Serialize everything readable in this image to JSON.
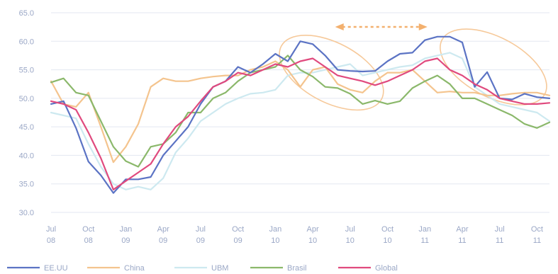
{
  "chart_data": {
    "type": "line",
    "title": "",
    "xlabel": "",
    "ylabel": "",
    "ylim": [
      30,
      65
    ],
    "yticks": [
      "30.0",
      "35.0",
      "40.0",
      "45.0",
      "50.0",
      "55.0",
      "60.0",
      "65.0"
    ],
    "ytick_values": [
      30,
      35,
      40,
      45,
      50,
      55,
      60,
      65
    ],
    "grid": true,
    "legend_position": "bottom",
    "x_ticks": [
      {
        "month": "Jul",
        "year": "08"
      },
      {
        "month": "Oct",
        "year": "08"
      },
      {
        "month": "Jan",
        "year": "09"
      },
      {
        "month": "Apr",
        "year": "09"
      },
      {
        "month": "Jul",
        "year": "09"
      },
      {
        "month": "Oct",
        "year": "09"
      },
      {
        "month": "Jan",
        "year": "10"
      },
      {
        "month": "Apr",
        "year": "10"
      },
      {
        "month": "Jul",
        "year": "10"
      },
      {
        "month": "Oct",
        "year": "10"
      },
      {
        "month": "Jan",
        "year": "11"
      },
      {
        "month": "Apr",
        "year": "11"
      },
      {
        "month": "Jul",
        "year": "11"
      },
      {
        "month": "Oct",
        "year": "11"
      }
    ],
    "x": [
      "2008-07",
      "2008-08",
      "2008-09",
      "2008-10",
      "2008-11",
      "2008-12",
      "2009-01",
      "2009-02",
      "2009-03",
      "2009-04",
      "2009-05",
      "2009-06",
      "2009-07",
      "2009-08",
      "2009-09",
      "2009-10",
      "2009-11",
      "2009-12",
      "2010-01",
      "2010-02",
      "2010-03",
      "2010-04",
      "2010-05",
      "2010-06",
      "2010-07",
      "2010-08",
      "2010-09",
      "2010-10",
      "2010-11",
      "2010-12",
      "2011-01",
      "2011-02",
      "2011-03",
      "2011-04",
      "2011-05",
      "2011-06",
      "2011-07",
      "2011-08",
      "2011-09",
      "2011-10",
      "2011-11"
    ],
    "series": [
      {
        "name": "EE.UU",
        "color": "#5b73c4",
        "values": [
          49.0,
          49.5,
          44.8,
          38.9,
          36.5,
          33.4,
          35.8,
          35.8,
          36.2,
          40.0,
          42.5,
          45.0,
          49.0,
          52.0,
          53.0,
          55.5,
          54.5,
          56.0,
          57.8,
          56.5,
          60.0,
          59.5,
          57.5,
          55.0,
          54.8,
          54.7,
          54.8,
          56.5,
          57.8,
          58.0,
          60.2,
          60.8,
          60.8,
          59.8,
          52.0,
          54.6,
          50.0,
          49.8,
          50.8,
          50.2,
          50.0
        ]
      },
      {
        "name": "China",
        "color": "#f4c48e",
        "values": [
          53.0,
          49.0,
          48.5,
          51.0,
          45.0,
          38.8,
          41.5,
          45.5,
          52.0,
          53.5,
          53.0,
          53.0,
          53.5,
          53.8,
          54.0,
          54.0,
          55.0,
          55.5,
          56.5,
          55.0,
          52.0,
          55.0,
          55.5,
          52.5,
          51.5,
          51.0,
          53.0,
          54.5,
          54.5,
          55.0,
          53.0,
          51.0,
          51.2,
          51.0,
          51.0,
          50.5,
          50.5,
          50.8,
          51.0,
          51.0,
          50.5
        ]
      },
      {
        "name": "UBM",
        "color": "#cde9f0",
        "values": [
          47.5,
          47.0,
          46.5,
          42.0,
          38.0,
          35.0,
          34.0,
          34.5,
          34.0,
          36.0,
          40.5,
          43.0,
          46.0,
          47.5,
          49.0,
          50.0,
          50.8,
          51.0,
          51.5,
          54.0,
          54.5,
          54.5,
          55.0,
          55.5,
          56.0,
          54.0,
          54.5,
          55.0,
          55.5,
          55.8,
          57.0,
          57.5,
          58.0,
          57.0,
          52.0,
          50.5,
          49.0,
          48.5,
          48.0,
          47.5,
          46.0
        ]
      },
      {
        "name": "Brasil",
        "color": "#8bb86b",
        "values": [
          52.8,
          53.5,
          51.0,
          50.5,
          46.0,
          41.5,
          39.0,
          38.0,
          41.5,
          42.0,
          44.0,
          47.5,
          47.5,
          50.0,
          51.0,
          53.0,
          54.5,
          55.0,
          55.5,
          57.5,
          55.0,
          53.8,
          52.0,
          51.8,
          50.8,
          49.0,
          49.6,
          49.0,
          49.5,
          51.8,
          53.0,
          54.0,
          52.5,
          50.0,
          50.0,
          49.0,
          48.0,
          47.0,
          45.5,
          44.8,
          45.8
        ]
      },
      {
        "name": "Global",
        "color": "#e04a7e",
        "values": [
          49.5,
          49.0,
          48.0,
          44.0,
          39.5,
          34.0,
          35.5,
          37.0,
          38.5,
          42.0,
          45.0,
          46.8,
          49.5,
          52.0,
          53.0,
          54.5,
          54.0,
          55.0,
          56.0,
          55.5,
          56.5,
          57.0,
          55.5,
          54.0,
          53.5,
          53.0,
          52.3,
          53.0,
          54.0,
          55.0,
          56.5,
          57.0,
          55.0,
          54.0,
          52.5,
          51.5,
          50.0,
          49.5,
          49.0,
          49.0,
          49.2
        ]
      }
    ]
  }
}
